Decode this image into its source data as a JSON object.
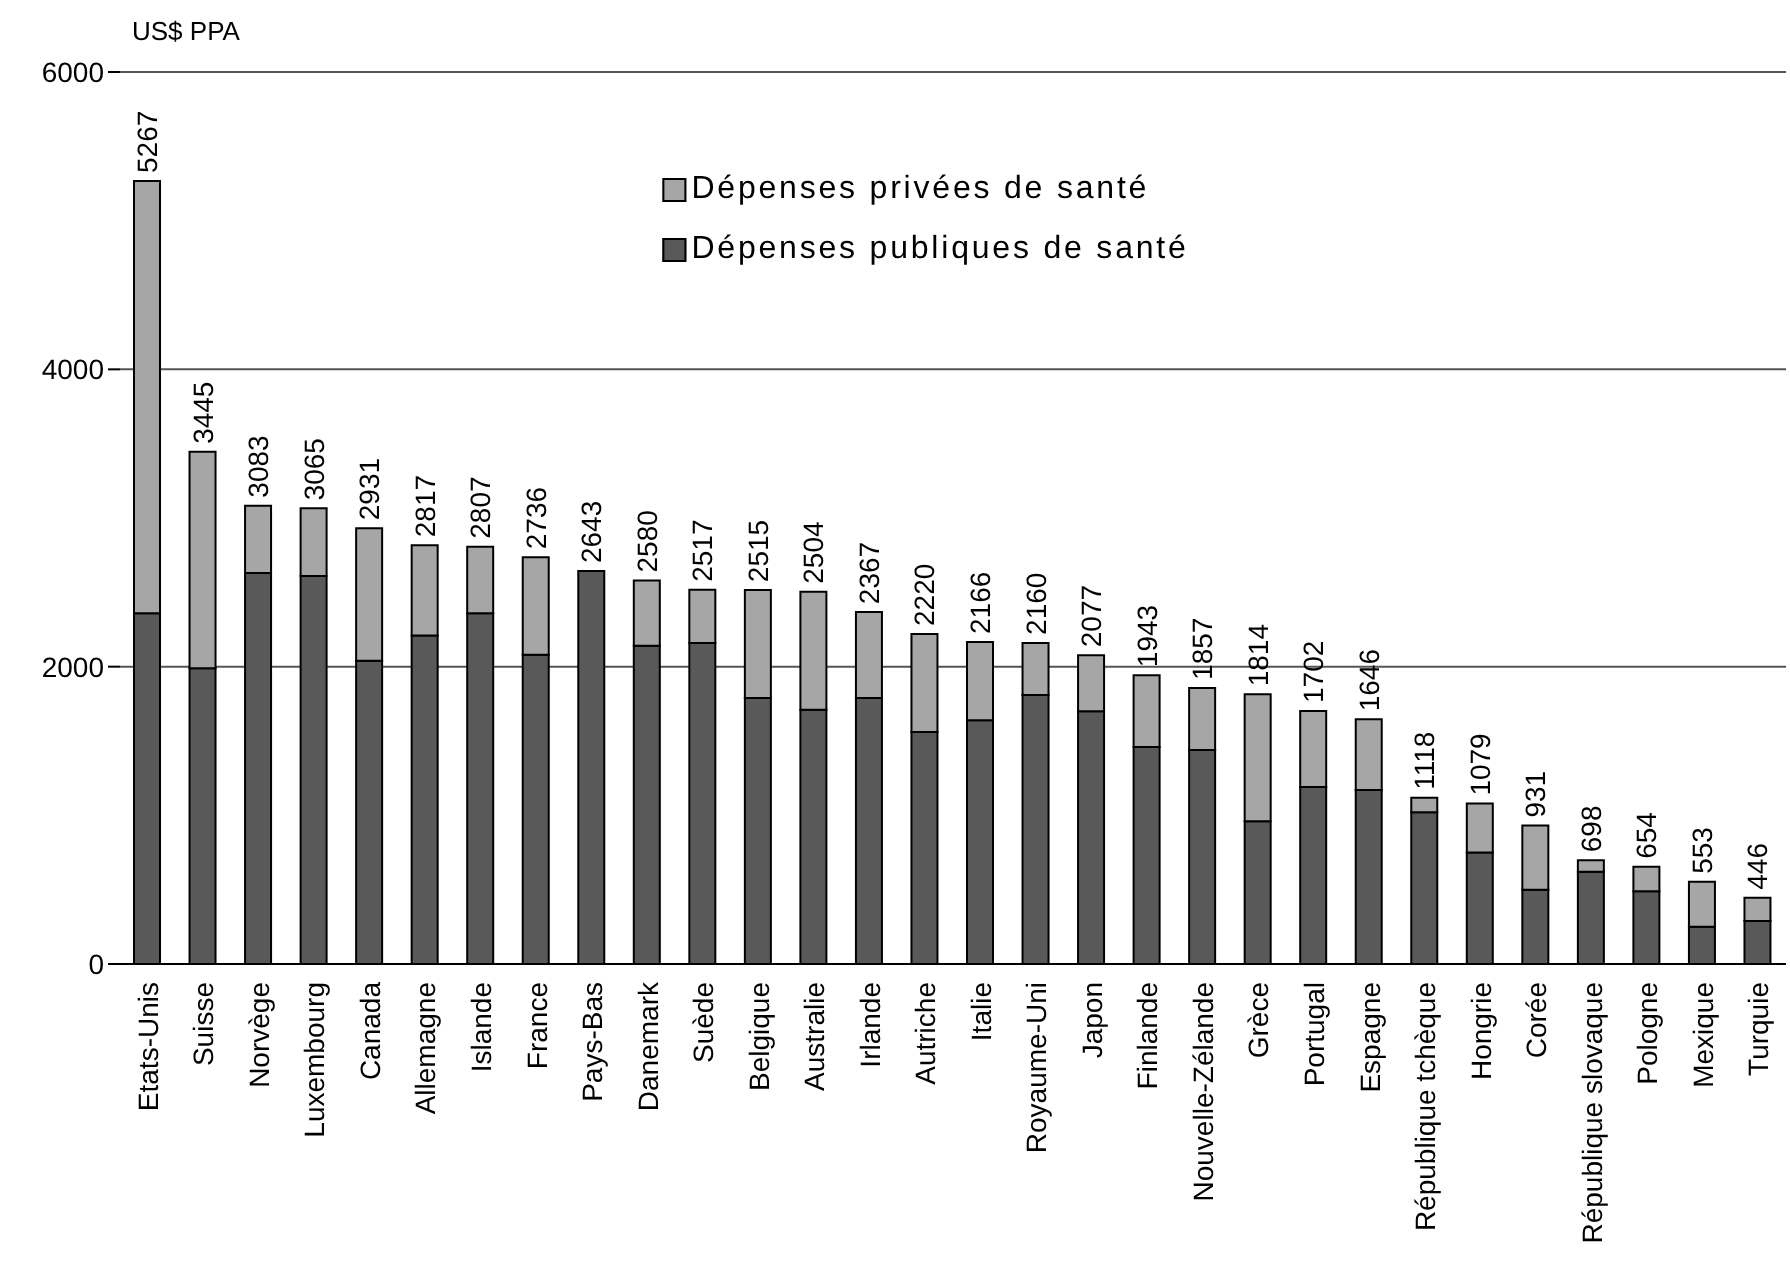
{
  "chart_data": {
    "type": "bar",
    "stacked": true,
    "ylabel": "US$ PPA",
    "categories": [
      "Etats-Unis",
      "Suisse",
      "Norvège",
      "Luxembourg",
      "Canada",
      "Allemagne",
      "Islande",
      "France",
      "Pays-Bas",
      "Danemark",
      "Suède",
      "Belgique",
      "Australie",
      "Irlande",
      "Autriche",
      "Italie",
      "Royaume-Uni",
      "Japon",
      "Finlande",
      "Nouvelle-Zélande",
      "Grèce",
      "Portugal",
      "Espagne",
      "République tchèque",
      "Hongrie",
      "Corée",
      "République slovaque",
      "Pologne",
      "Mexique",
      "Turquie"
    ],
    "series": [
      {
        "name": "Dépenses publiques de santé",
        "color": "#595959",
        "values": [
          2360,
          1990,
          2630,
          2610,
          2040,
          2210,
          2360,
          2080,
          2643,
          2140,
          2160,
          1790,
          1710,
          1790,
          1560,
          1640,
          1810,
          1700,
          1460,
          1440,
          960,
          1190,
          1170,
          1020,
          750,
          500,
          620,
          490,
          250,
          290
        ]
      },
      {
        "name": "Dépenses privées de santé",
        "color": "#a6a6a6",
        "values": [
          2907,
          1455,
          453,
          455,
          891,
          607,
          447,
          656,
          null,
          440,
          357,
          725,
          794,
          577,
          660,
          526,
          350,
          377,
          483,
          417,
          854,
          512,
          476,
          98,
          329,
          431,
          78,
          164,
          303,
          156
        ]
      }
    ],
    "totals": [
      "5267",
      "3445",
      "3083",
      "3065",
      "2931",
      "2817",
      "2807",
      "2736",
      "2643",
      "2580",
      "2517",
      "2515",
      "2504",
      "2367",
      "2220",
      "2166",
      "2160",
      "2077",
      "1943",
      "1857",
      "1814",
      "1702",
      "1646",
      "1118",
      "1079",
      "931",
      "698",
      "654",
      "553",
      "446"
    ],
    "ylim": [
      0,
      6000
    ],
    "yticks": [
      0,
      2000,
      4000,
      6000
    ],
    "grid": "y",
    "legend": "top"
  }
}
